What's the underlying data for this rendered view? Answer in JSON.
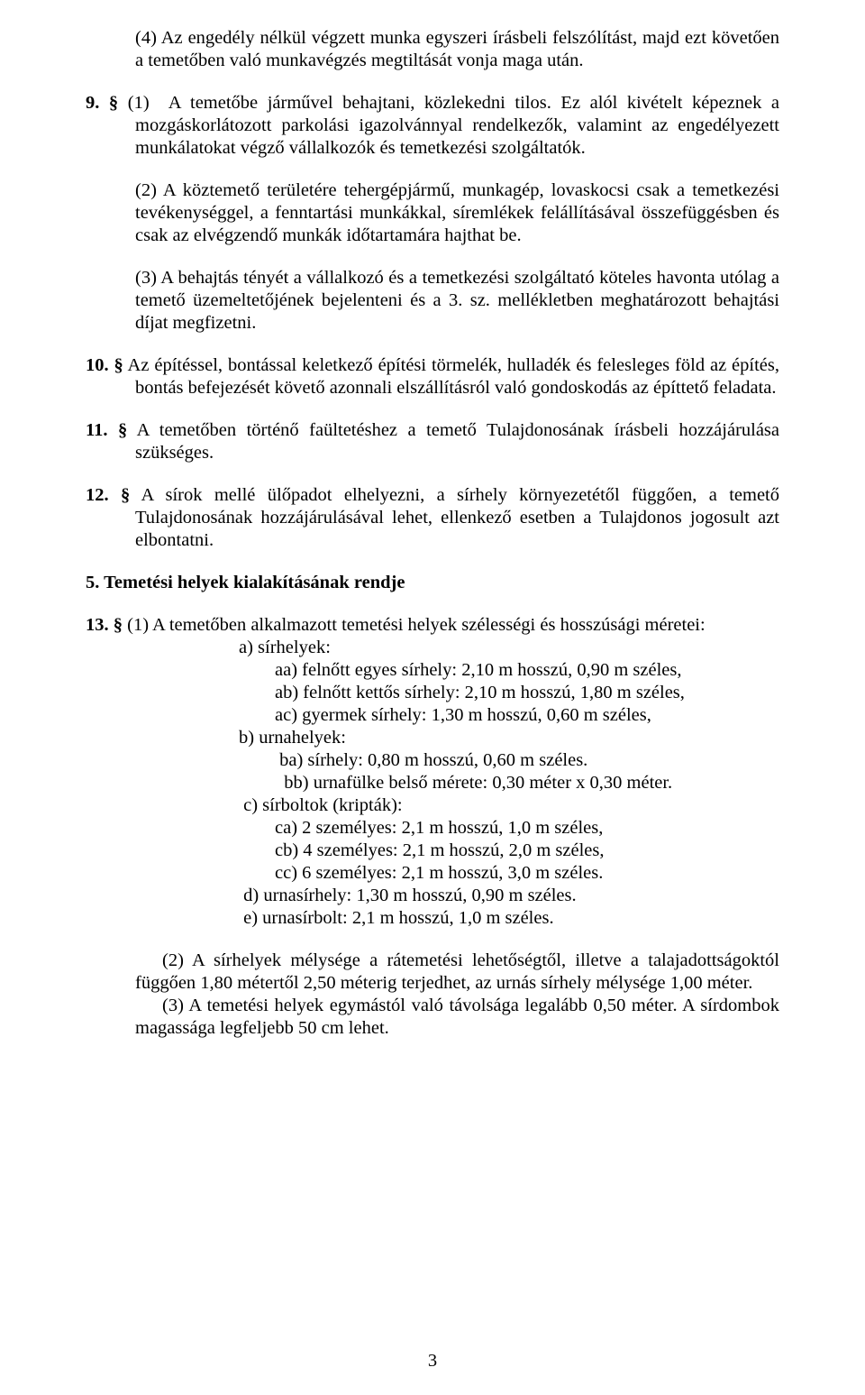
{
  "p4": "(4) Az engedély nélkül végzett munka egyszeri írásbeli felszólítást, majd ezt követően a temetőben való munkavégzés megtiltását vonja maga után.",
  "s9": {
    "marker": "9. §",
    "text": "(1)  A temetőbe járművel behajtani, közlekedni tilos. Ez alól kivételt képeznek a mozgáskorlátozott parkolási igazolvánnyal rendelkezők, valamint az engedélyezett munkálatokat végző vállalkozók és temetkezési szolgáltatók.",
    "p2": "(2) A köztemető területére tehergépjármű, munkagép, lovaskocsi csak a temetkezési tevékenységgel, a fenntartási munkákkal, síremlékek felállításával összefüggésben és csak az elvégzendő munkák időtartamára hajthat be.",
    "p3": "(3) A behajtás tényét a vállalkozó és a temetkezési szolgáltató köteles havonta utólag a temető üzemeltetőjének bejelenteni és a 3. sz. mellékletben meghatározott behajtási díjat megfizetni."
  },
  "s10": {
    "marker": "10. §",
    "text": "Az építéssel, bontással keletkező építési törmelék, hulladék és felesleges föld az építés, bontás befejezését követő azonnali elszállításról való gondoskodás az építtető feladata."
  },
  "s11": {
    "marker": "11. §",
    "text": "A temetőben történő faültetéshez a temető Tulajdonosának írásbeli hozzájárulása szükséges."
  },
  "s12": {
    "marker": "12. §",
    "text": "A sírok mellé ülőpadot elhelyezni, a sírhely környezetétől függően, a temető Tulajdonosának hozzájárulásával lehet, ellenkező esetben a Tulajdonos jogosult azt elbontatni."
  },
  "heading5": "5. Temetési helyek kialakításának rendje",
  "s13": {
    "marker": "13. §",
    "intro": "(1) A temetőben alkalmazott temetési helyek szélességi és hosszúsági méretei:",
    "a": "a) sírhelyek:",
    "aa": "aa) felnőtt egyes sírhely: 2,10 m hosszú, 0,90 m széles,",
    "ab": "ab) felnőtt kettős sírhely: 2,10 m hosszú, 1,80 m széles,",
    "ac": "ac) gyermek sírhely: 1,30 m hosszú, 0,60 m széles,",
    "b": "b) urnahelyek:",
    "ba": " ba) sírhely: 0,80 m hosszú, 0,60 m széles.",
    "bb": "  bb) urnafülke belső mérete: 0,30 méter x 0,30 méter.",
    "c": " c) sírboltok (kripták):",
    "ca": "ca) 2 személyes: 2,1 m hosszú, 1,0 m széles,",
    "cb": "cb) 4 személyes: 2,1 m hosszú, 2,0 m széles,",
    "cc": "cc) 6 személyes: 2,1 m hosszú, 3,0 m széles.",
    "d": " d) urnasírhely: 1,30 m hosszú, 0,90 m széles.",
    "e": " e) urnasírbolt: 2,1 m hosszú, 1,0 m széles.",
    "p2": "(2) A sírhelyek mélysége a rátemetési lehetőségtől, illetve a talajadottságoktól függően 1,80 métertől 2,50 méterig terjedhet, az urnás sírhely mélysége 1,00 méter.",
    "p3": "(3) A temetési helyek egymástól való távolsága legalább 0,50 méter. A sírdombok magassága legfeljebb 50 cm lehet."
  },
  "pageNumber": "3"
}
